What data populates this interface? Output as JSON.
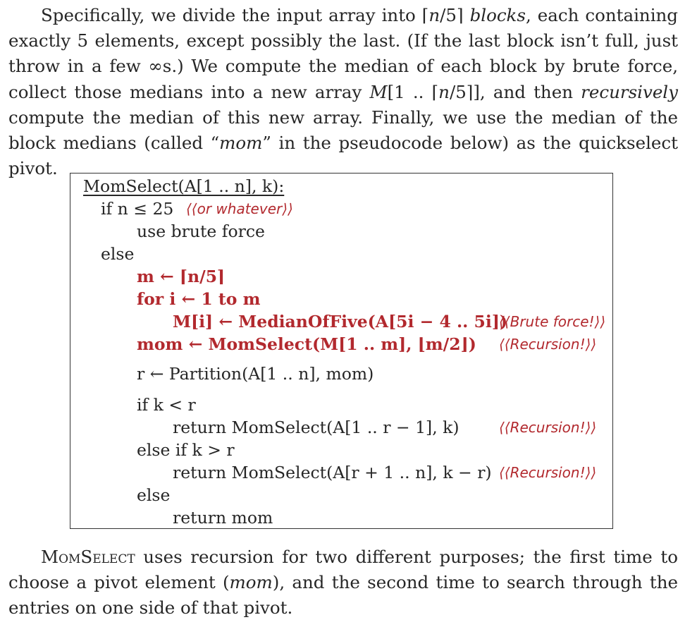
{
  "intro": {
    "line1_a": "Specifically, we divide the input array into ⌈",
    "line1_n": "n",
    "line1_b": "/5⌉ ",
    "line1_blocks": "blocks",
    "line1_c": ", each containing exactly 5 elements, except possibly the last. (If the last block isn’t full, just throw in a few ∞s.) We compute the median of each block by brute force, collect those medians into a new array ",
    "m_arr": "M",
    "arr_range": "[1 .. ⌈",
    "arr_n": "n",
    "arr_end": "/5⌉]",
    "line1_d": ", and then ",
    "recursively": "recursively",
    "line1_e": " compute the median of this new array. Finally, we use the median of the block medians (called “",
    "mom": "mom",
    "line1_f": "” in the pseudocode below) as the quickselect pivot."
  },
  "code": {
    "header": "MomSelect(A[1 .. n], k):",
    "l1": "if n ≤ 25",
    "l1_comment": "⟨⟨or whatever⟩⟩",
    "l2": "use brute force",
    "l3": "else",
    "l4": "m ← ⌈n/5⌉",
    "l5": "for i ← 1 to m",
    "l6": "M[i] ← MedianOfFive(A[5i − 4 .. 5i])",
    "l6_comment": "⟨⟨Brute force!⟩⟩",
    "l7": "mom ← MomSelect(M[1 .. m], ⌊m/2⌋)",
    "l7_comment": "⟨⟨Recursion!⟩⟩",
    "l8": "r ← Partition(A[1 .. n], mom)",
    "l9": "if k < r",
    "l10": "return MomSelect(A[1 .. r − 1], k)",
    "l10_comment": "⟨⟨Recursion!⟩⟩",
    "l11": "else if k > r",
    "l12": "return MomSelect(A[r + 1 .. n], k − r)",
    "l12_comment": "⟨⟨Recursion!⟩⟩",
    "l13": "else",
    "l14": "return mom"
  },
  "outro": {
    "name": "MomSelect",
    "a": " uses recursion for two different purposes; the first time to choose a pivot element (",
    "mom": "mom",
    "b": "), and the second time to search through the entries on one side of that pivot."
  }
}
